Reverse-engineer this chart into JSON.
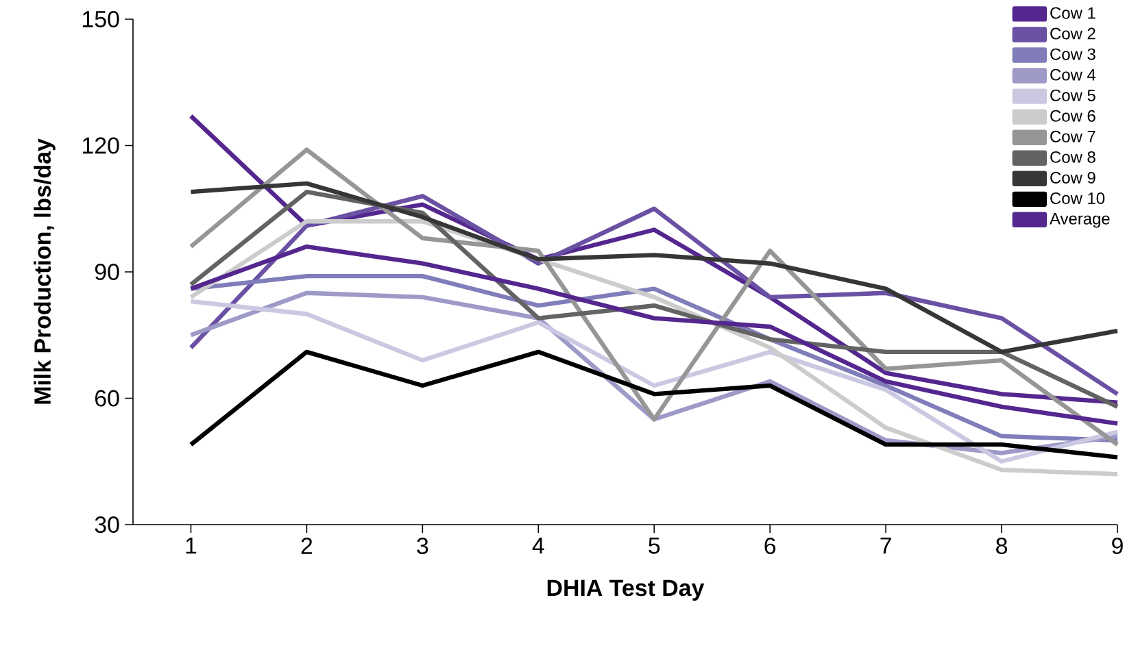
{
  "chart_data": {
    "type": "line",
    "xlabel": "DHIA Test Day",
    "ylabel": "Milk Production, lbs/day",
    "x": [
      1,
      2,
      3,
      4,
      5,
      6,
      7,
      8,
      9
    ],
    "xlim": [
      0.5,
      9
    ],
    "xticks": [
      1,
      2,
      3,
      4,
      5,
      6,
      7,
      8,
      9
    ],
    "ylim": [
      30,
      150
    ],
    "yticks": [
      30,
      60,
      90,
      120,
      150
    ],
    "grid": false,
    "legend": "top right",
    "marker": "none",
    "series": [
      {
        "name": "Cow 1",
        "color": "#54278f",
        "values": [
          127,
          101,
          106,
          93,
          100,
          84,
          66,
          61,
          59
        ]
      },
      {
        "name": "Cow 2",
        "color": "#6a51a3",
        "values": [
          72,
          101,
          108,
          92,
          105,
          84,
          85,
          79,
          61
        ]
      },
      {
        "name": "Cow 3",
        "color": "#807dba",
        "values": [
          86,
          89,
          89,
          82,
          86,
          74,
          63,
          51,
          50
        ]
      },
      {
        "name": "Cow 4",
        "color": "#9e9ac8",
        "values": [
          75,
          85,
          84,
          79,
          55,
          64,
          50,
          47,
          51
        ]
      },
      {
        "name": "Cow 5",
        "color": "#cbc9e2",
        "values": [
          83,
          80,
          69,
          78,
          63,
          71,
          62,
          45,
          52
        ]
      },
      {
        "name": "Cow 6",
        "color": "#cccccc",
        "values": [
          84,
          102,
          102,
          93,
          84,
          72,
          53,
          43,
          42
        ]
      },
      {
        "name": "Cow 7",
        "color": "#969696",
        "values": [
          96,
          119,
          98,
          95,
          55,
          95,
          67,
          69,
          49
        ]
      },
      {
        "name": "Cow 8",
        "color": "#636363",
        "values": [
          87,
          109,
          104,
          79,
          82,
          74,
          71,
          71,
          58
        ]
      },
      {
        "name": "Cow 9",
        "color": "#363636",
        "values": [
          109,
          111,
          103,
          93,
          94,
          92,
          86,
          71,
          76
        ]
      },
      {
        "name": "Cow 10",
        "color": "#000000",
        "values": [
          49,
          71,
          63,
          71,
          61,
          63,
          49,
          49,
          46
        ]
      },
      {
        "name": "Average",
        "color": "#54278f",
        "values": [
          86,
          96,
          92,
          86,
          79,
          77,
          64,
          58,
          54
        ]
      }
    ]
  }
}
